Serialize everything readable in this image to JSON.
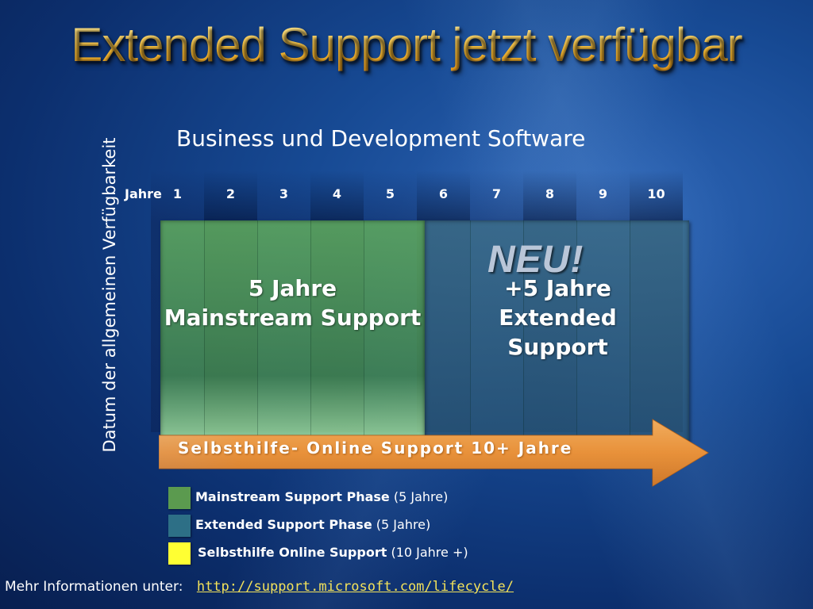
{
  "title": "Extended Support jetzt verfügbar",
  "subtitle": "Business und Development Software",
  "vertical_label": "Datum der allgemeinen Verfügbarkeit",
  "timeline": {
    "years_label": "Jahre",
    "years": [
      "1",
      "2",
      "3",
      "4",
      "5",
      "6",
      "7",
      "8",
      "9",
      "10"
    ]
  },
  "phases": {
    "mainstream": {
      "line1": "5 Jahre",
      "line2": "Mainstream Support",
      "color": "#5aa05a"
    },
    "extended": {
      "badge": "NEU!",
      "line1": "+5 Jahre",
      "line2": "Extended",
      "line3": "Support",
      "color": "#2d6f86"
    },
    "selfhelp": {
      "label": "Selbsthilfe- Online Support 10+ Jahre",
      "color": "#e8913a"
    }
  },
  "legend": [
    {
      "name": "Mainstream Support Phase",
      "detail": "(5 Jahre)",
      "color": "#5b9a4f"
    },
    {
      "name": "Extended Support Phase",
      "detail": "(5 Jahre)",
      "color": "#2d6f86"
    },
    {
      "name": "Selbsthilfe Online Support",
      "detail": "(10 Jahre +)",
      "color": "#ffff33"
    }
  ],
  "footer": {
    "text": "Mehr Informationen unter:",
    "link": "http://support.microsoft.com/lifecycle/"
  }
}
